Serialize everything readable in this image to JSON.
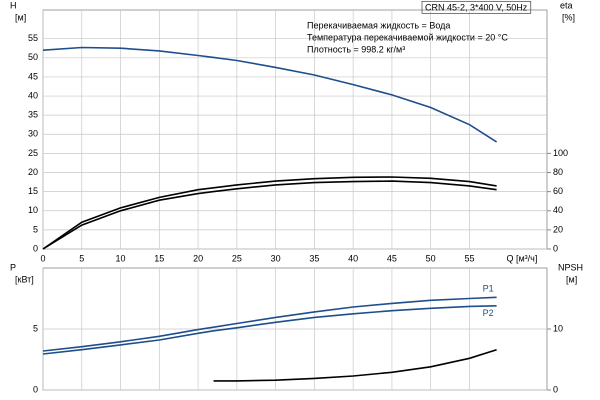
{
  "chart_data": [
    {
      "type": "line",
      "title": "CRN 45-2, 3*400 V, 50Hz",
      "annotations": [
        "Перекачиваемая жидкость = Вода",
        "Температура перекачиваемой жидкости = 20 °C",
        "Плотность = 998.2 кг/м³"
      ],
      "ylabel": [
        "H",
        "[м]"
      ],
      "y2label": [
        "eta",
        "[%]"
      ],
      "xlabel": "Q [м³/ч]",
      "x": [
        0,
        5,
        10,
        15,
        20,
        22,
        25,
        30,
        35,
        40,
        45,
        50,
        55,
        58.5
      ],
      "xlim": [
        0,
        65
      ],
      "xticks": [
        0,
        5,
        10,
        15,
        20,
        25,
        30,
        35,
        40,
        45,
        50,
        55
      ],
      "ylim": [
        0,
        62.5
      ],
      "yticks": [
        0,
        5,
        10,
        15,
        20,
        25,
        30,
        35,
        40,
        45,
        50,
        55
      ],
      "y2lim": [
        0,
        250
      ],
      "y2ticks": [
        0,
        20,
        40,
        60,
        80,
        100
      ],
      "grid": true,
      "series": [
        {
          "color": "#1f4e8c",
          "values": [
            52,
            52.7,
            52.5,
            51.8,
            50.6,
            50.1,
            49.3,
            47.5,
            45.5,
            43,
            40.3,
            37,
            32.5,
            28
          ]
        },
        {
          "color": "#000000",
          "axis": "y2",
          "values": [
            0,
            28,
            43,
            54,
            62,
            64,
            67,
            71,
            73.5,
            75,
            75.3,
            74,
            70.5,
            66
          ]
        },
        {
          "color": "#000000",
          "axis": "y2",
          "values": [
            0,
            25,
            40,
            51,
            58,
            60,
            63,
            67,
            69.5,
            70.5,
            71,
            69.5,
            66,
            62
          ]
        }
      ]
    },
    {
      "type": "line",
      "ylabel": [
        "P",
        "[кВт]"
      ],
      "y2label": [
        "NPSH",
        "[м]"
      ],
      "x": [
        0,
        5,
        10,
        15,
        20,
        22,
        25,
        30,
        35,
        40,
        45,
        50,
        55,
        58.5
      ],
      "xlim": [
        0,
        65
      ],
      "xticks": [
        0,
        5,
        10,
        15,
        20,
        25,
        30,
        35,
        40,
        45,
        50,
        55
      ],
      "ylim": [
        0,
        10
      ],
      "yticks": [
        0,
        5
      ],
      "y2lim": [
        0,
        20
      ],
      "y2ticks": [
        0,
        10
      ],
      "grid": true,
      "series": [
        {
          "name": "P1",
          "color": "#1f4e8c",
          "values": [
            3.2,
            3.55,
            3.95,
            4.4,
            4.95,
            5.15,
            5.45,
            5.95,
            6.4,
            6.8,
            7.1,
            7.35,
            7.5,
            7.6
          ]
        },
        {
          "name": "P2",
          "color": "#1f4e8c",
          "values": [
            2.95,
            3.3,
            3.7,
            4.1,
            4.65,
            4.85,
            5.1,
            5.55,
            5.95,
            6.25,
            6.5,
            6.7,
            6.85,
            6.9
          ]
        },
        {
          "color": "#000000",
          "axis": "y2",
          "values": [
            null,
            null,
            null,
            null,
            null,
            1.5,
            1.5,
            1.6,
            1.9,
            2.3,
            2.9,
            3.8,
            5.2,
            6.6
          ]
        }
      ]
    }
  ]
}
